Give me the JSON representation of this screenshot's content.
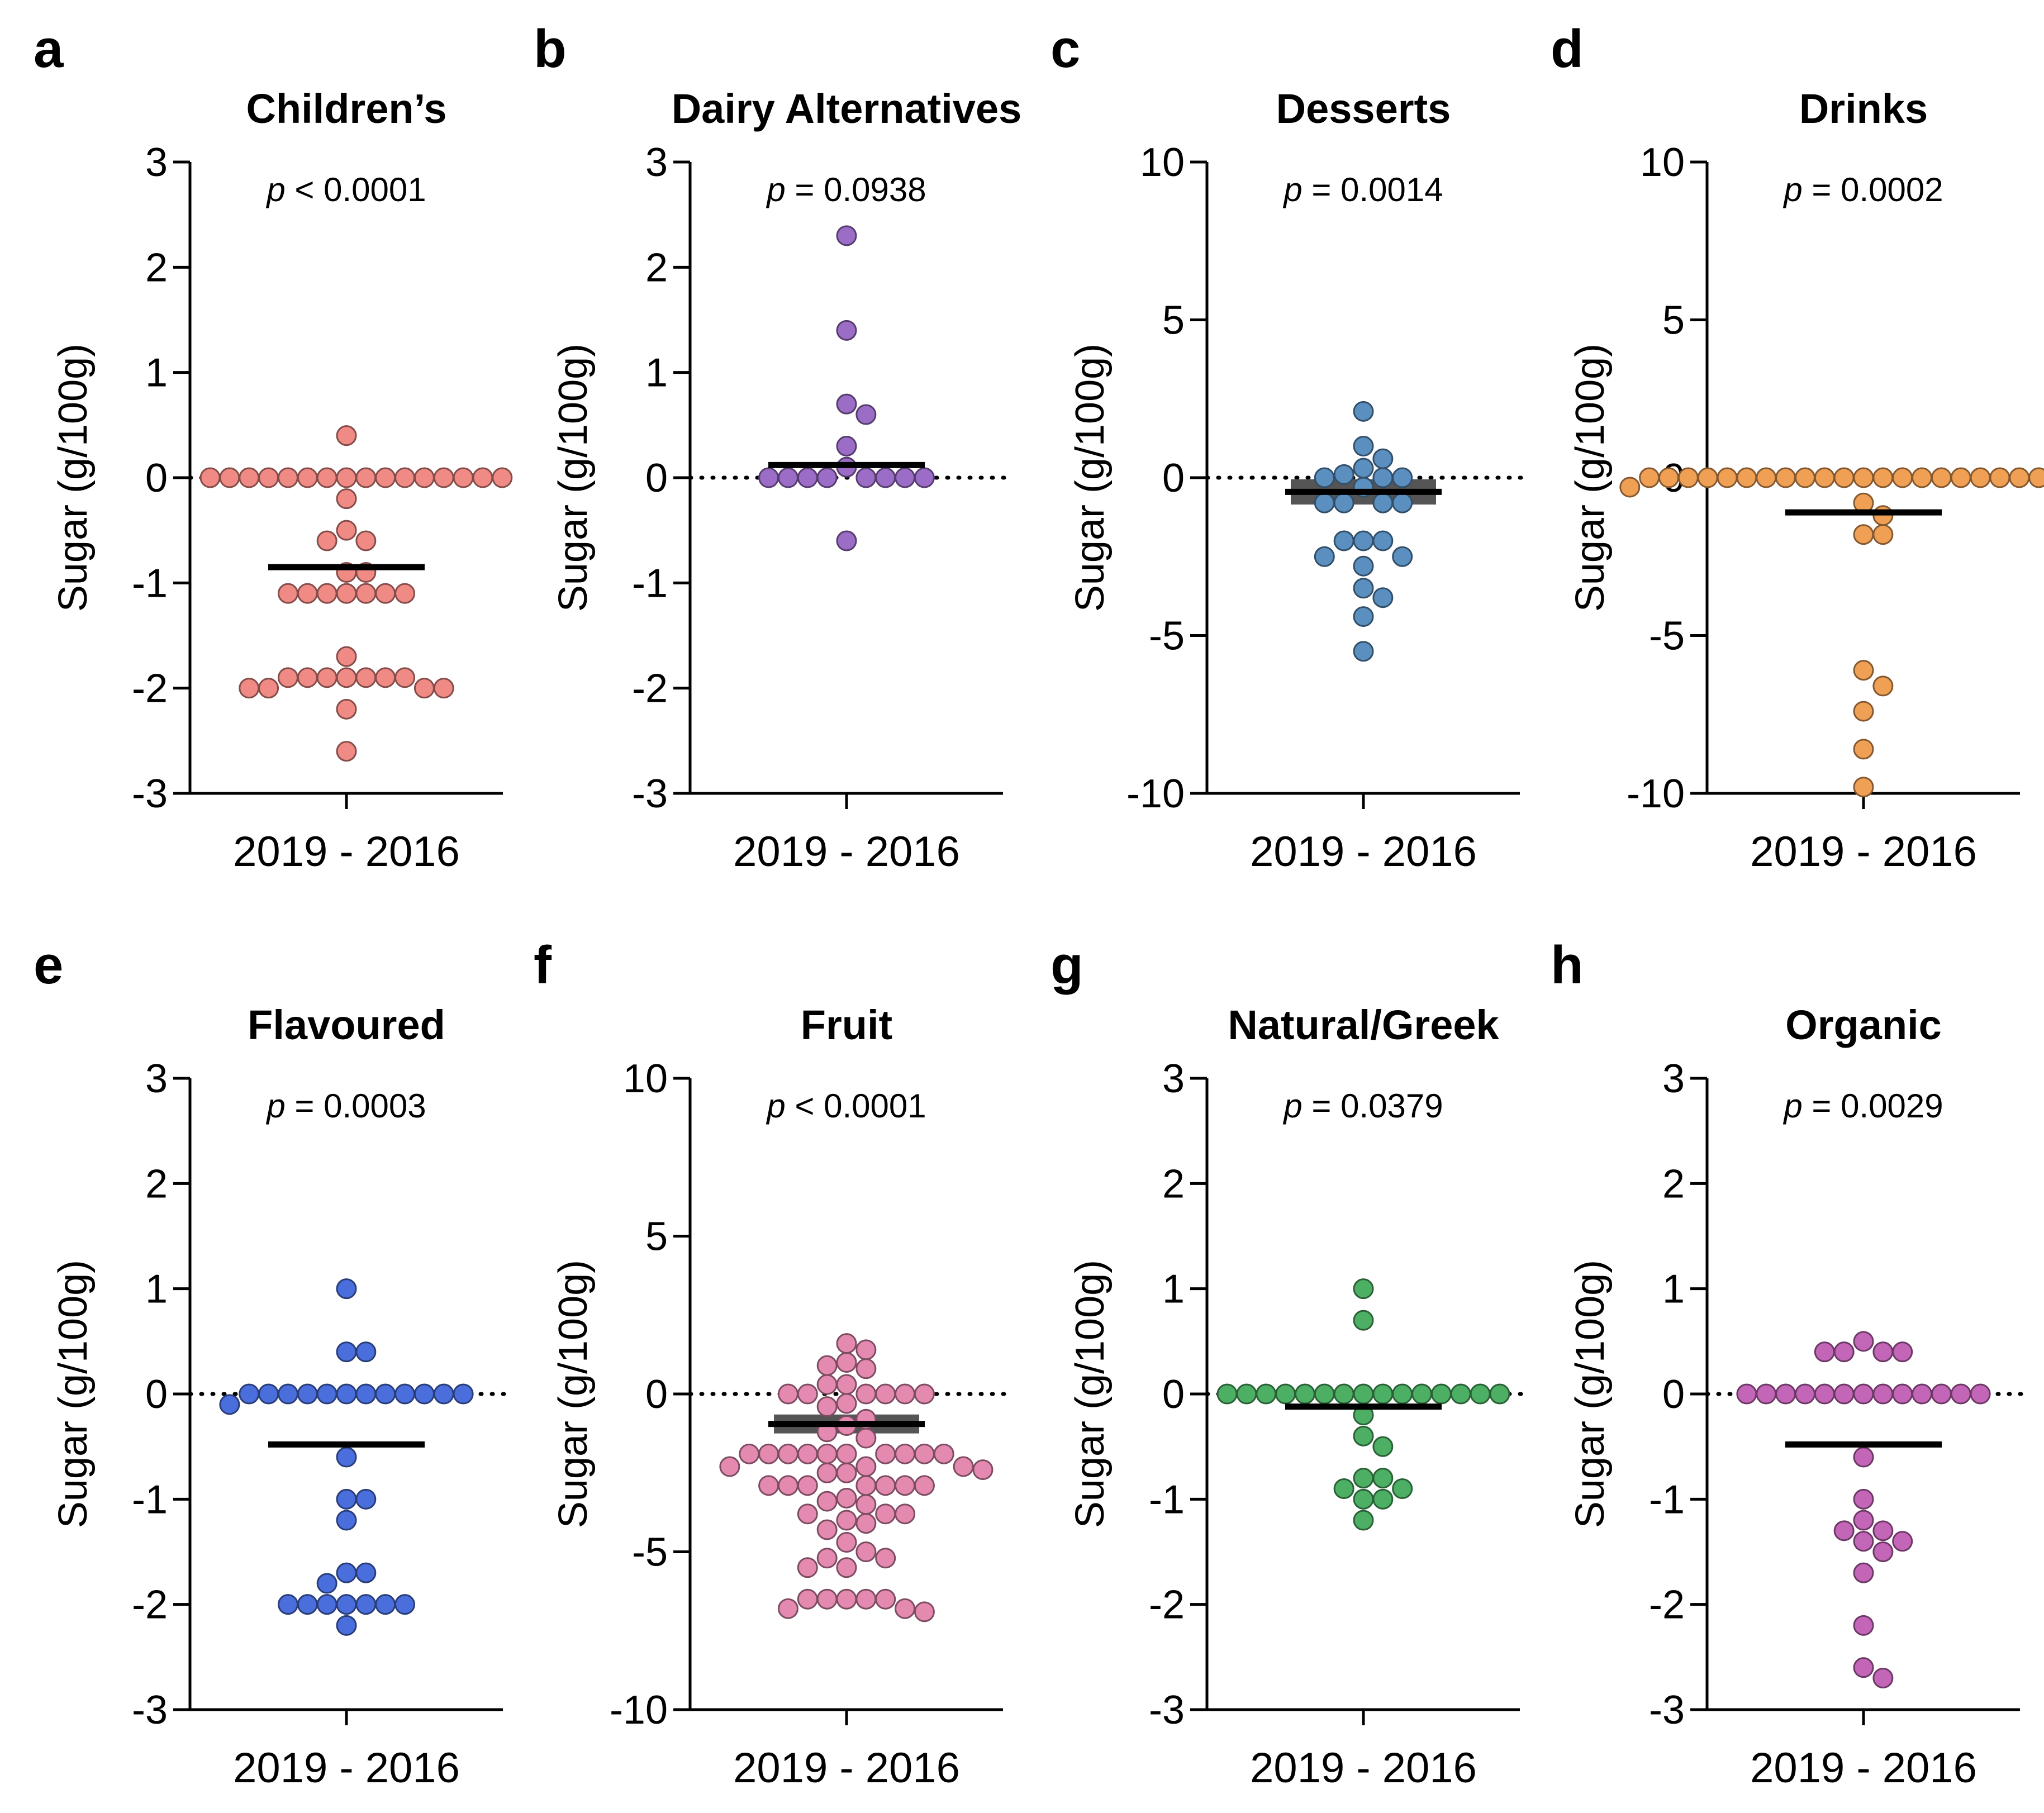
{
  "figure": {
    "description_free": true
  },
  "chart_data": [
    {
      "type": "scatter",
      "letter": "a",
      "title": "Children’s",
      "p_prefix": "p",
      "p_text": " < 0.0001",
      "ylabel": "Sugar (g/100g)",
      "xcategory": "2019 - 2016",
      "ylim": [
        -3,
        3
      ],
      "yticks": [
        3,
        2,
        1,
        0,
        -1,
        -2,
        -3
      ],
      "color": "#f08a85",
      "mean": -0.85,
      "sem": 0.0,
      "values": [
        0.4,
        0,
        0,
        0,
        0,
        0,
        0,
        0,
        0,
        0,
        0,
        0,
        0,
        0,
        0,
        0,
        0,
        -0.2,
        -0.5,
        -0.6,
        -0.6,
        -0.9,
        -0.9,
        -1.1,
        -1.1,
        -1.1,
        -1.1,
        -1.1,
        -1.1,
        -1.1,
        -1.7,
        -1.9,
        -1.9,
        -1.9,
        -1.9,
        -1.9,
        -1.9,
        -1.9,
        -2.0,
        -2.0,
        -2.0,
        -2.0,
        -2.2,
        -2.6
      ]
    },
    {
      "type": "scatter",
      "letter": "b",
      "title": "Dairy Alternatives",
      "p_prefix": "p",
      "p_text": " = 0.0938",
      "ylabel": "Sugar (g/100g)",
      "xcategory": "2019 - 2016",
      "ylim": [
        -3,
        3
      ],
      "yticks": [
        3,
        2,
        1,
        0,
        -1,
        -2,
        -3
      ],
      "color": "#9b6dc6",
      "mean": 0.12,
      "sem": 0.0,
      "values": [
        2.3,
        1.4,
        0.7,
        0.6,
        0.3,
        0.1,
        0,
        0,
        0,
        0,
        0,
        0,
        0,
        0,
        -0.6
      ]
    },
    {
      "type": "scatter",
      "letter": "c",
      "title": "Desserts",
      "p_prefix": "p",
      "p_text": " = 0.0014",
      "ylabel": "Sugar (g/100g)",
      "xcategory": "2019 - 2016",
      "ylim": [
        -10,
        10
      ],
      "yticks": [
        10,
        5,
        0,
        -5,
        -10
      ],
      "color": "#5b8fbf",
      "mean": -0.45,
      "sem": 0.4,
      "values": [
        2.1,
        1.0,
        0.6,
        0.3,
        0.1,
        0,
        0,
        0,
        -0.3,
        -0.8,
        -0.8,
        -0.8,
        -0.8,
        -2.0,
        -2.0,
        -2.0,
        -2.5,
        -2.5,
        -2.8,
        -3.5,
        -3.8,
        -4.4,
        -5.5
      ]
    },
    {
      "type": "scatter",
      "letter": "d",
      "title": "Drinks",
      "p_prefix": "p",
      "p_text": " = 0.0002",
      "ylabel": "Sugar (g/100g)",
      "xcategory": "2019 - 2016",
      "ylim": [
        -10,
        10
      ],
      "yticks": [
        10,
        5,
        0,
        -5,
        -10
      ],
      "color": "#f0a055",
      "mean": -1.1,
      "sem": 0.0,
      "values": [
        0,
        0,
        0,
        0,
        0,
        0,
        0,
        0,
        0,
        0,
        0,
        0,
        0,
        0,
        0,
        0,
        0,
        0,
        0,
        0,
        0,
        0,
        0,
        0,
        -0.3,
        -0.3,
        -0.8,
        -1.2,
        -1.8,
        -1.8,
        -6.1,
        -6.6,
        -7.4,
        -8.6,
        -9.8
      ]
    },
    {
      "type": "scatter",
      "letter": "e",
      "title": "Flavoured",
      "p_prefix": "p",
      "p_text": " = 0.0003",
      "ylabel": "Sugar (g/100g)",
      "xcategory": "2019 - 2016",
      "ylim": [
        -3,
        3
      ],
      "yticks": [
        3,
        2,
        1,
        0,
        -1,
        -2,
        -3
      ],
      "color": "#4a6fdc",
      "mean": -0.48,
      "sem": 0.0,
      "values": [
        1.0,
        0.4,
        0.4,
        0,
        0,
        0,
        0,
        0,
        0,
        0,
        0,
        0,
        0,
        0,
        0,
        -0.1,
        -0.6,
        -1.0,
        -1.0,
        -1.2,
        -1.7,
        -1.7,
        -1.8,
        -2.0,
        -2.0,
        -2.0,
        -2.0,
        -2.0,
        -2.0,
        -2.0,
        -2.2
      ]
    },
    {
      "type": "scatter",
      "letter": "f",
      "title": "Fruit",
      "p_prefix": "p",
      "p_text": " < 0.0001",
      "ylabel": "Sugar (g/100g)",
      "xcategory": "2019 - 2016",
      "ylim": [
        -10,
        10
      ],
      "yticks": [
        10,
        5,
        0,
        -5,
        -10
      ],
      "color": "#e48ab1",
      "mean": -0.95,
      "sem": 0.3,
      "values": [
        1.6,
        1.4,
        1.0,
        0.9,
        0.8,
        0.3,
        0.3,
        0,
        0,
        0,
        0,
        0,
        0,
        -0.3,
        -0.4,
        -0.8,
        -1.0,
        -1.2,
        -1.4,
        -1.9,
        -1.9,
        -1.9,
        -1.9,
        -1.9,
        -1.9,
        -1.9,
        -1.9,
        -1.9,
        -1.9,
        -2.3,
        -2.3,
        -2.3,
        -2.4,
        -2.5,
        -2.5,
        -2.9,
        -2.9,
        -2.9,
        -2.9,
        -2.9,
        -2.9,
        -2.9,
        -3.3,
        -3.4,
        -3.5,
        -3.8,
        -3.8,
        -3.8,
        -4.0,
        -4.1,
        -4.3,
        -4.7,
        -5.0,
        -5.2,
        -5.2,
        -5.5,
        -5.5,
        -6.5,
        -6.5,
        -6.5,
        -6.5,
        -6.5,
        -6.8,
        -6.8,
        -6.9
      ]
    },
    {
      "type": "scatter",
      "letter": "g",
      "title": "Natural/Greek",
      "p_prefix": "p",
      "p_text": " = 0.0379",
      "ylabel": "Sugar (g/100g)",
      "xcategory": "2019 - 2016",
      "ylim": [
        -3,
        3
      ],
      "yticks": [
        3,
        2,
        1,
        0,
        -1,
        -2,
        -3
      ],
      "color": "#4caf63",
      "mean": -0.12,
      "sem": 0.0,
      "values": [
        1.0,
        0.7,
        0,
        0,
        0,
        0,
        0,
        0,
        0,
        0,
        0,
        0,
        0,
        0,
        0,
        0,
        0,
        -0.2,
        -0.4,
        -0.5,
        -0.8,
        -0.8,
        -0.9,
        -0.9,
        -1.0,
        -1.0,
        -1.2
      ]
    },
    {
      "type": "scatter",
      "letter": "h",
      "title": "Organic",
      "p_prefix": "p",
      "p_text": " = 0.0029",
      "ylabel": "Sugar (g/100g)",
      "xcategory": "2019 - 2016",
      "ylim": [
        -3,
        3
      ],
      "yticks": [
        3,
        2,
        1,
        0,
        -1,
        -2,
        -3
      ],
      "color": "#c466b8",
      "mean": -0.48,
      "sem": 0.0,
      "values": [
        0.5,
        0.4,
        0.4,
        0.4,
        0.4,
        0,
        0,
        0,
        0,
        0,
        0,
        0,
        0,
        0,
        0,
        0,
        0,
        0,
        -0.6,
        -1.0,
        -1.2,
        -1.3,
        -1.3,
        -1.4,
        -1.4,
        -1.5,
        -1.7,
        -2.2,
        -2.6,
        -2.7
      ]
    }
  ]
}
